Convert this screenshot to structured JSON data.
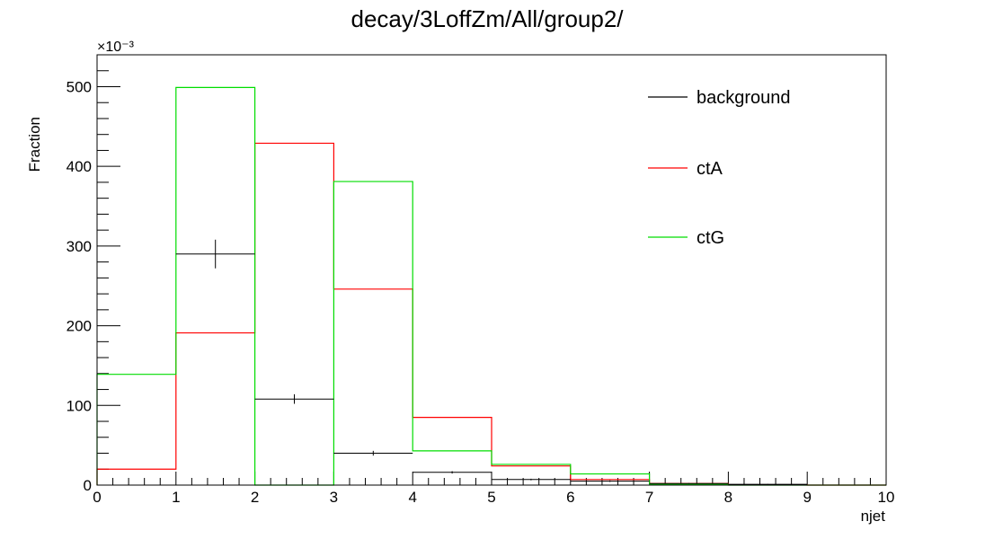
{
  "chart_data": {
    "type": "histogram",
    "title": "decay/3LoffZm/All/group2/",
    "xlabel": "njet",
    "ylabel": "Fraction",
    "y_multiplier": "×10⁻³",
    "xlim": [
      0,
      10
    ],
    "ylim": [
      0,
      540
    ],
    "x_ticks": [
      0,
      1,
      2,
      3,
      4,
      5,
      6,
      7,
      8,
      9,
      10
    ],
    "x_tick_labels": [
      "0",
      "1",
      "2",
      "3",
      "4",
      "5",
      "6",
      "7",
      "8",
      "9",
      "10"
    ],
    "y_ticks": [
      0,
      100,
      200,
      300,
      400,
      500
    ],
    "y_tick_labels": [
      "0",
      "100",
      "200",
      "300",
      "400",
      "500"
    ],
    "bin_edges": [
      0,
      1,
      2,
      3,
      4,
      5,
      6,
      7,
      8,
      9,
      10
    ],
    "legend_position": "top-right",
    "series": [
      {
        "name": "background",
        "color": "#000000",
        "style": "points-with-errors",
        "values": [
          0,
          290,
          108,
          40,
          16,
          7,
          5,
          2,
          1,
          0.5
        ],
        "errors": [
          0,
          18,
          6,
          3,
          1.5,
          1,
          1,
          0.5,
          0.5,
          0.5
        ]
      },
      {
        "name": "ctA",
        "color": "#ff0000",
        "style": "step",
        "values": [
          20,
          191,
          429,
          246,
          85,
          24,
          7,
          2,
          0.5,
          0
        ]
      },
      {
        "name": "ctG",
        "color": "#00dd00",
        "style": "step",
        "values": [
          139,
          499,
          0,
          381,
          43,
          26,
          14,
          1,
          0,
          0
        ]
      }
    ]
  }
}
